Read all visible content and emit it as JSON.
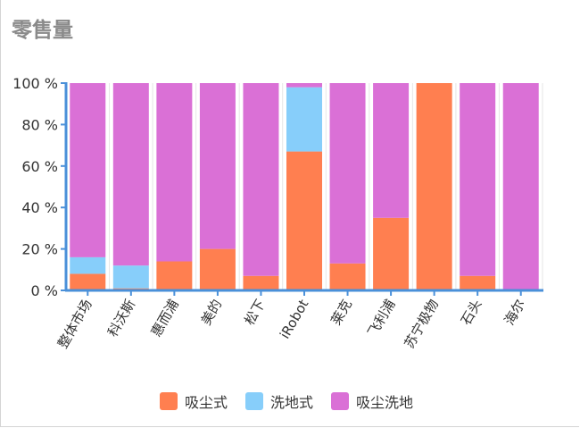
{
  "page": {
    "title": "零售量"
  },
  "chart_data": {
    "type": "bar",
    "stacked": true,
    "categories": [
      "整体市场",
      "科沃斯",
      "惠而浦",
      "美的",
      "松下",
      "iRobot",
      "莱克",
      "飞利浦",
      "苏宁极物",
      "石头",
      "海尔"
    ],
    "series": [
      {
        "name": "吸尘式",
        "color": "#ff7f50",
        "values": [
          8,
          1,
          14,
          20,
          7,
          67,
          13,
          35,
          100,
          7,
          0
        ]
      },
      {
        "name": "洗地式",
        "color": "#87cefa",
        "values": [
          8,
          11,
          0,
          0,
          0,
          31,
          0,
          0,
          0,
          0,
          0
        ]
      },
      {
        "name": "吸尘洗地",
        "color": "#da70d6",
        "values": [
          84,
          88,
          86,
          80,
          93,
          2,
          87,
          65,
          0,
          93,
          100
        ]
      }
    ],
    "ylim": [
      0,
      100
    ],
    "yticks": [
      "0 %",
      "20 %",
      "40 %",
      "60 %",
      "80 %",
      "100 %"
    ],
    "legend_position": "bottom",
    "grid": "vertical"
  }
}
